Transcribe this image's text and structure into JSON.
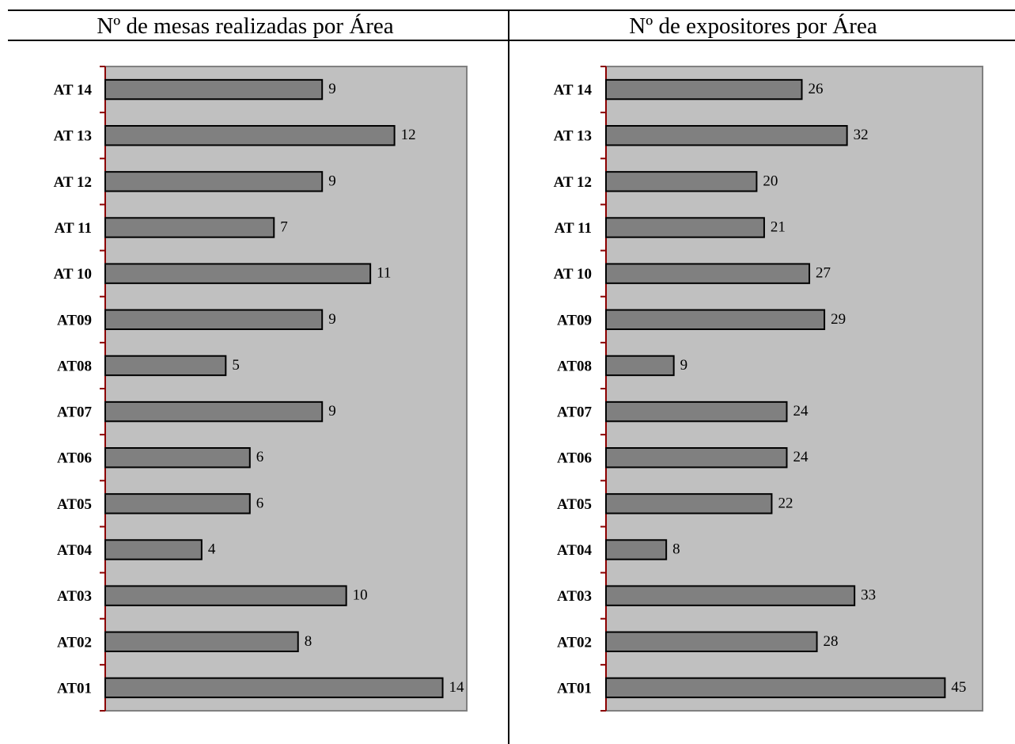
{
  "chart_data": [
    {
      "type": "bar",
      "orientation": "horizontal",
      "title": "Nº de mesas realizadas por Área",
      "categories": [
        "AT 14",
        "AT 13",
        "AT 12",
        "AT 11",
        "AT 10",
        "AT09",
        "AT08",
        "AT07",
        "AT06",
        "AT05",
        "AT04",
        "AT03",
        "AT02",
        "AT01"
      ],
      "values": [
        9,
        12,
        9,
        7,
        11,
        9,
        5,
        9,
        6,
        6,
        4,
        10,
        8,
        14
      ],
      "xlim": [
        0,
        15
      ],
      "grid": false,
      "data_labels": true
    },
    {
      "type": "bar",
      "orientation": "horizontal",
      "title": "Nº de expositores por Área",
      "categories": [
        "AT 14",
        "AT 13",
        "AT 12",
        "AT 11",
        "AT 10",
        "AT09",
        "AT08",
        "AT07",
        "AT06",
        "AT05",
        "AT04",
        "AT03",
        "AT02",
        "AT01"
      ],
      "values": [
        26,
        32,
        20,
        21,
        27,
        29,
        9,
        24,
        24,
        22,
        8,
        33,
        28,
        45
      ],
      "xlim": [
        0,
        50
      ],
      "grid": false,
      "data_labels": true
    }
  ],
  "colors": {
    "plot_background": "#c0c0c0",
    "bar_fill": "#808080",
    "bar_stroke": "#000000",
    "axis_line": "#8b0000",
    "frame": "#808080"
  }
}
